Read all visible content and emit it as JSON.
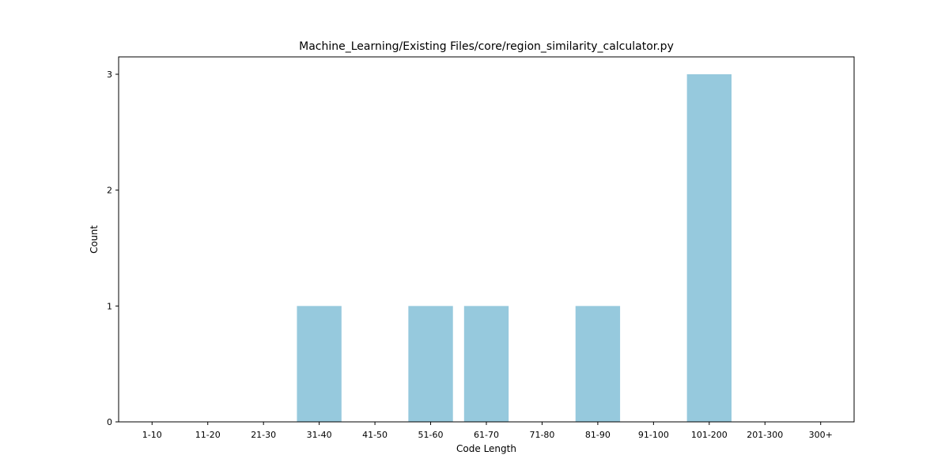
{
  "chart_data": {
    "type": "bar",
    "title": "Machine_Learning/Existing Files/core/region_similarity_calculator.py",
    "xlabel": "Code Length",
    "ylabel": "Count",
    "categories": [
      "1-10",
      "11-20",
      "21-30",
      "31-40",
      "41-50",
      "51-60",
      "61-70",
      "71-80",
      "81-90",
      "91-100",
      "101-200",
      "201-300",
      "300+"
    ],
    "values": [
      0,
      0,
      0,
      1,
      0,
      1,
      1,
      0,
      1,
      0,
      3,
      0,
      0
    ],
    "ylim": [
      0,
      3.15
    ],
    "yticks": [
      0,
      1,
      2,
      3
    ],
    "bar_color": "#96c9dd",
    "grid": false,
    "legend": "none"
  }
}
